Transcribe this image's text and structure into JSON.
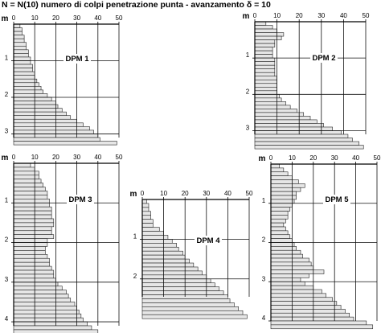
{
  "header": {
    "title": "N = N(10)  numero di colpi penetrazione punta  -  avanzamento  δ =  10"
  },
  "chart_data": [
    {
      "type": "bar",
      "title": "DPM 1",
      "depth_label": "m",
      "x_ticks": [
        0,
        10,
        20,
        30,
        40,
        50
      ],
      "xlim": [
        0,
        50
      ],
      "depth_ticks": [
        1,
        2,
        3
      ],
      "ylim": [
        0,
        3.1
      ],
      "values": [
        3,
        4,
        4,
        5,
        5,
        6,
        6,
        7,
        7,
        8,
        8,
        9,
        9,
        10,
        10,
        11,
        12,
        13,
        14,
        16,
        18,
        20,
        21,
        23,
        25,
        27,
        30,
        33,
        36,
        38,
        40,
        41,
        49
      ]
    },
    {
      "type": "bar",
      "title": "DPM 2",
      "depth_label": "m",
      "x_ticks": [
        0,
        10,
        20,
        30,
        40,
        50
      ],
      "xlim": [
        0,
        50
      ],
      "depth_ticks": [
        1,
        2,
        3
      ],
      "ylim": [
        0,
        3.1
      ],
      "values": [
        5,
        8,
        10,
        13,
        12,
        9,
        9,
        8,
        8,
        8,
        9,
        9,
        9,
        9,
        9,
        10,
        10,
        10,
        10,
        10,
        11,
        12,
        14,
        16,
        19,
        22,
        25,
        28,
        31,
        35,
        39,
        42,
        44,
        47,
        49
      ]
    },
    {
      "type": "bar",
      "title": "DPM 3",
      "depth_label": "m",
      "x_ticks": [
        0,
        10,
        20,
        30,
        40,
        50
      ],
      "xlim": [
        0,
        50
      ],
      "depth_ticks": [
        1,
        2,
        3,
        4
      ],
      "ylim": [
        0,
        4.1
      ],
      "values": [
        8,
        10,
        12,
        12,
        13,
        14,
        15,
        16,
        16,
        17,
        17,
        18,
        18,
        18,
        19,
        19,
        18,
        18,
        19,
        16,
        16,
        15,
        15,
        16,
        17,
        17,
        18,
        19,
        19,
        20,
        21,
        23,
        25,
        26,
        27,
        29,
        30,
        31,
        32,
        33,
        35,
        37,
        40,
        44,
        47
      ]
    },
    {
      "type": "bar",
      "title": "DPM 4",
      "depth_label": "m",
      "x_ticks": [
        0,
        10,
        20,
        30,
        40,
        50
      ],
      "xlim": [
        0,
        50
      ],
      "depth_ticks": [
        1,
        2
      ],
      "ylim": [
        0,
        2.45
      ],
      "values": [
        2,
        3,
        3,
        4,
        4,
        5,
        5,
        8,
        10,
        12,
        14,
        16,
        17,
        19,
        20,
        22,
        24,
        26,
        28,
        30,
        32,
        34,
        36,
        38,
        40,
        41,
        43,
        45,
        47,
        49
      ]
    },
    {
      "type": "bar",
      "title": "DPM 5",
      "depth_label": "m",
      "x_ticks": [
        0,
        10,
        20,
        30,
        40,
        50
      ],
      "xlim": [
        0,
        50
      ],
      "depth_ticks": [
        1,
        2,
        3,
        4
      ],
      "ylim": [
        0,
        4.0
      ],
      "values": [
        4,
        6,
        8,
        10,
        13,
        16,
        14,
        12,
        12,
        11,
        10,
        9,
        8,
        8,
        7,
        6,
        7,
        8,
        9,
        10,
        11,
        12,
        14,
        15,
        18,
        19,
        20,
        25,
        18,
        14,
        16,
        20,
        24,
        26,
        29,
        31,
        33,
        35,
        37,
        39,
        45,
        48
      ]
    }
  ]
}
